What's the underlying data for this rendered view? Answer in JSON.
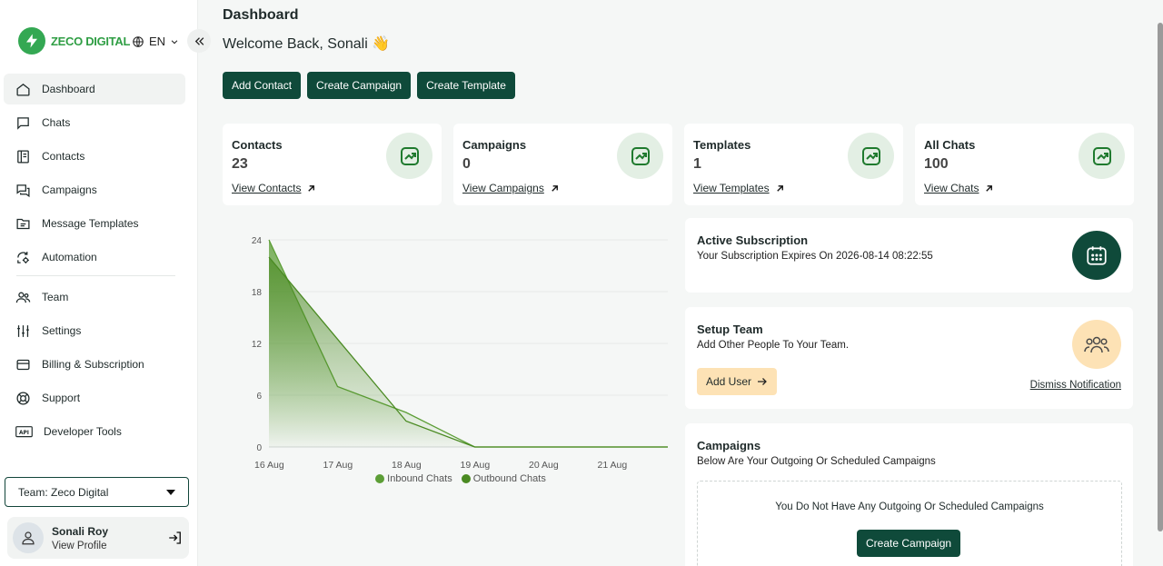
{
  "brand": {
    "name": "ZECO DIGITAL"
  },
  "language": {
    "code": "EN"
  },
  "nav": {
    "items": [
      {
        "label": "Dashboard",
        "icon": "home-icon"
      },
      {
        "label": "Chats",
        "icon": "chat-icon"
      },
      {
        "label": "Contacts",
        "icon": "contacts-icon"
      },
      {
        "label": "Campaigns",
        "icon": "campaigns-icon"
      },
      {
        "label": "Message Templates",
        "icon": "templates-icon"
      },
      {
        "label": "Automation",
        "icon": "automation-icon"
      },
      {
        "label": "Team",
        "icon": "team-icon"
      },
      {
        "label": "Settings",
        "icon": "sliders-icon"
      },
      {
        "label": "Billing & Subscription",
        "icon": "card-icon"
      },
      {
        "label": "Support",
        "icon": "lifebuoy-icon"
      },
      {
        "label": "Developer Tools",
        "icon": "api-icon"
      }
    ]
  },
  "team_select": {
    "label": "Team: Zeco Digital"
  },
  "profile": {
    "name": "Sonali Roy",
    "link": "View Profile"
  },
  "header": {
    "title": "Dashboard",
    "welcome": "Welcome Back, Sonali 👋"
  },
  "actions": {
    "add_contact": "Add Contact",
    "create_campaign": "Create Campaign",
    "create_template": "Create Template"
  },
  "stats": [
    {
      "title": "Contacts",
      "value": "23",
      "link": "View Contacts"
    },
    {
      "title": "Campaigns",
      "value": "0",
      "link": "View Campaigns"
    },
    {
      "title": "Templates",
      "value": "1",
      "link": "View Templates"
    },
    {
      "title": "All Chats",
      "value": "100",
      "link": "View Chats"
    }
  ],
  "subscription": {
    "title": "Active Subscription",
    "text": "Your Subscription Expires On 2026-08-14 08:22:55"
  },
  "setup_team": {
    "title": "Setup Team",
    "text": "Add Other People To Your Team.",
    "button": "Add User",
    "dismiss": "Dismiss Notification"
  },
  "campaigns_card": {
    "title": "Campaigns",
    "text": "Below Are Your Outgoing Or Scheduled Campaigns",
    "empty": "You Do Not Have Any Outgoing Or Scheduled Campaigns",
    "button": "Create Campaign"
  },
  "colors": {
    "primary": "#0f4a3a",
    "accent_green": "#4e8f2a",
    "peach": "#fde2b5"
  },
  "chart_data": {
    "type": "area",
    "x": [
      "16 Aug",
      "17 Aug",
      "18 Aug",
      "19 Aug",
      "20 Aug",
      "21 Aug"
    ],
    "x_tick_labels": [
      "16 Aug",
      "17 Aug",
      "18 Aug",
      "19 Aug",
      "20 Aug",
      "21 Aug"
    ],
    "y_tick_labels": [
      "0",
      "6",
      "12",
      "18",
      "24"
    ],
    "ylim": [
      0,
      24
    ],
    "series": [
      {
        "name": "Inbound Chats",
        "color": "#5c9e36",
        "values": [
          24,
          7,
          4,
          0,
          0,
          0
        ]
      },
      {
        "name": "Outbound Chats",
        "color": "#4a8a22",
        "values": [
          22,
          12.5,
          3,
          0,
          0,
          0
        ]
      }
    ],
    "legend": "bottom",
    "grid": true
  }
}
